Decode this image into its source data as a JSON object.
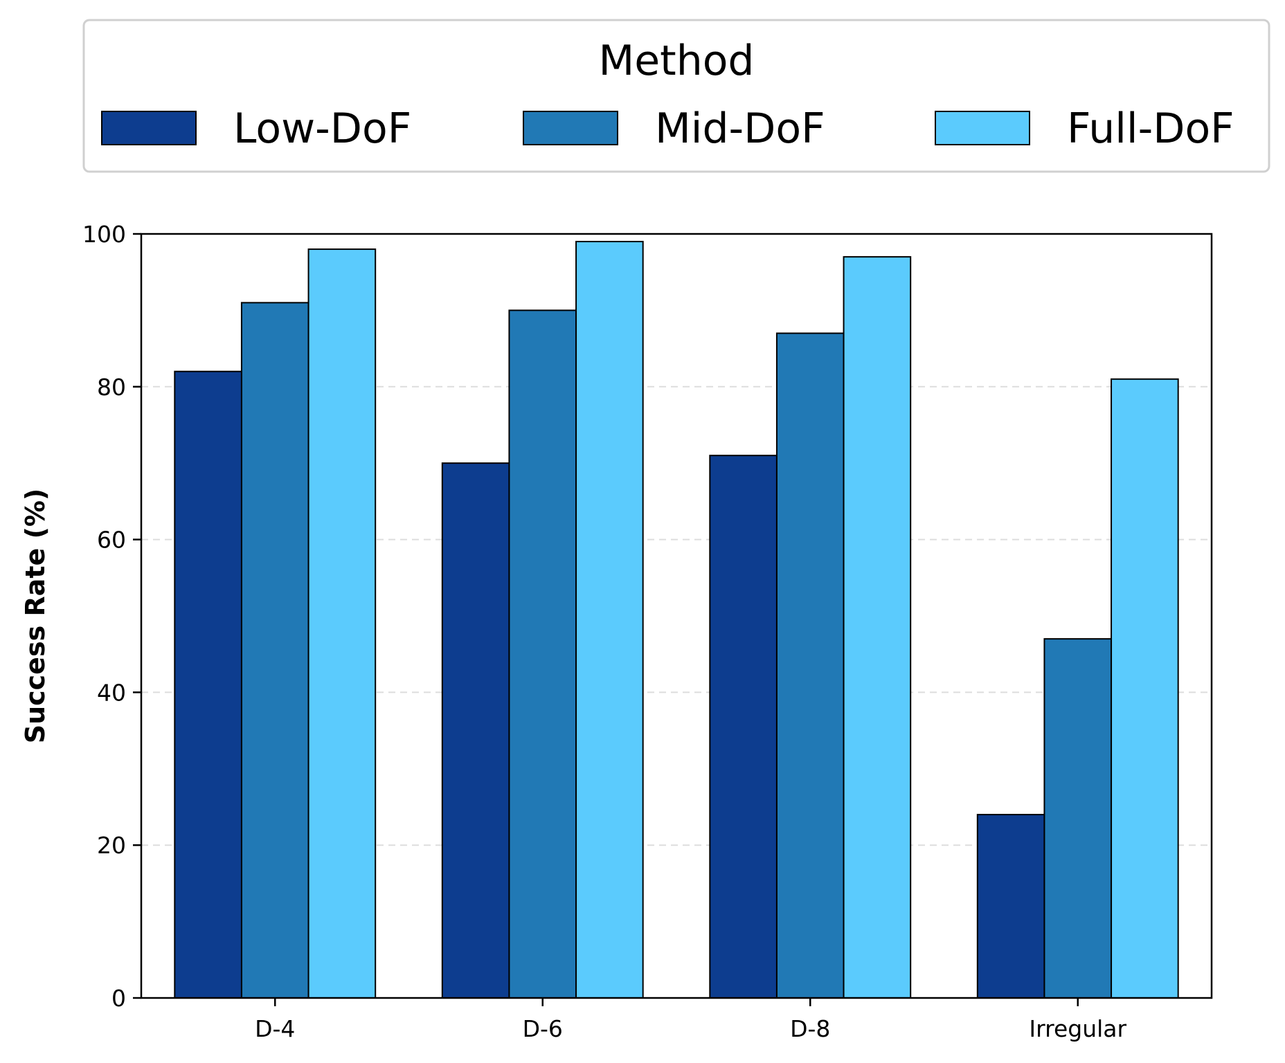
{
  "chart_data": {
    "type": "bar",
    "title": "",
    "xlabel": "",
    "ylabel": "Success Rate (%)",
    "categories": [
      "D-4",
      "D-6",
      "D-8",
      "Irregular"
    ],
    "series": [
      {
        "name": "Low-DoF",
        "values": [
          82,
          70,
          71,
          24
        ],
        "color": "#0d3d8f"
      },
      {
        "name": "Mid-DoF",
        "values": [
          91,
          90,
          87,
          47
        ],
        "color": "#2179b5"
      },
      {
        "name": "Full-DoF",
        "values": [
          98,
          99,
          97,
          81
        ],
        "color": "#5bcbfd"
      }
    ],
    "ylim": [
      0,
      100
    ],
    "yticks": [
      0,
      20,
      40,
      60,
      80,
      100
    ],
    "grid": "horizontal dashed",
    "legend": {
      "title": "Method",
      "placement": "top, above plot, 3 columns"
    }
  }
}
